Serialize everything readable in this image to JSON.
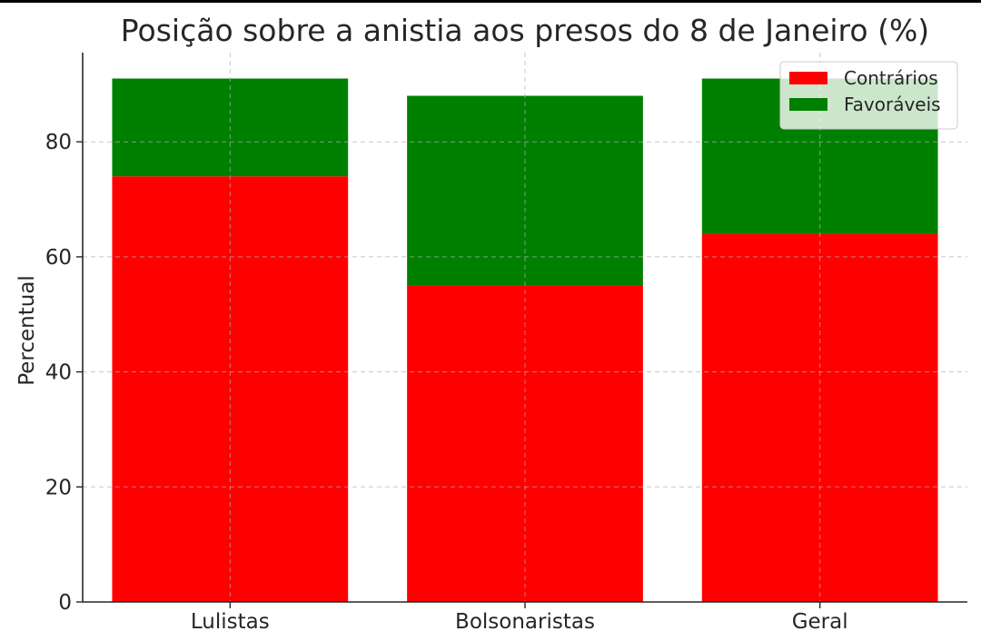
{
  "chart_data": {
    "type": "bar",
    "stacked": true,
    "title": "Posição sobre a anistia aos presos do 8 de Janeiro (%)",
    "xlabel": "",
    "ylabel": "Percentual",
    "categories": [
      "Lulistas",
      "Bolsonaristas",
      "Geral"
    ],
    "series": [
      {
        "name": "Contrários",
        "values": [
          74,
          55,
          64
        ],
        "color": "#ff0000"
      },
      {
        "name": "Favoráveis",
        "values": [
          17,
          33,
          27
        ],
        "color": "#008000"
      }
    ],
    "ylim": [
      0,
      95.5
    ],
    "yticks": [
      0,
      20,
      40,
      60,
      80
    ],
    "grid": true,
    "legend_position": "top-right"
  }
}
